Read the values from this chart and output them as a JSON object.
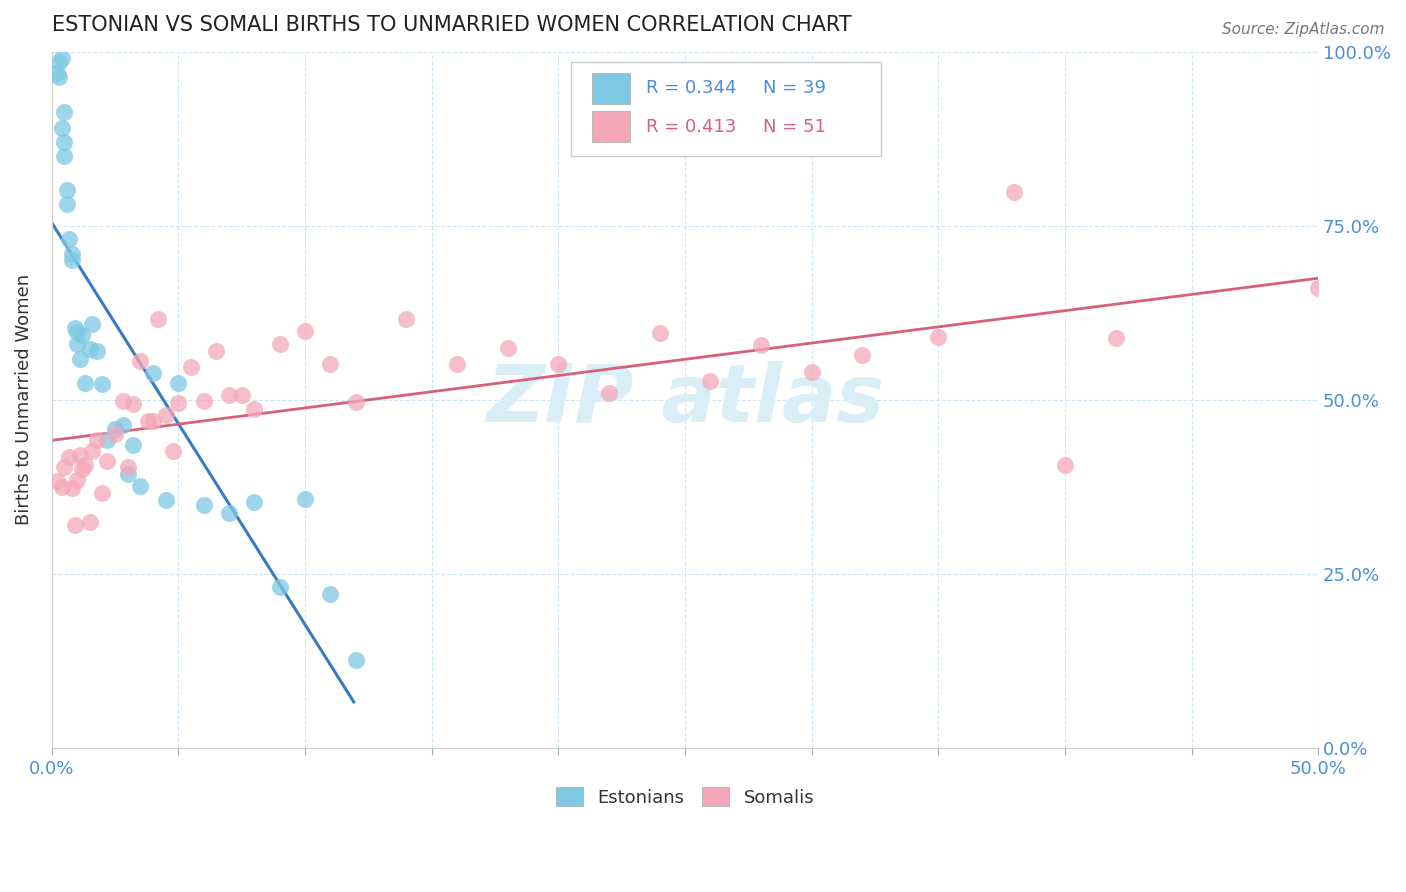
{
  "title": "ESTONIAN VS SOMALI BIRTHS TO UNMARRIED WOMEN CORRELATION CHART",
  "source": "Source: ZipAtlas.com",
  "ylabel": "Births to Unmarried Women",
  "xlim": [
    0.0,
    0.5
  ],
  "ylim": [
    0.0,
    1.0
  ],
  "legend_r1": "R = 0.344",
  "legend_n1": "N = 39",
  "legend_r2": "R = 0.413",
  "legend_n2": "N = 51",
  "legend_label1": "Estonians",
  "legend_label2": "Somalis",
  "color_estonian": "#7ec8e3",
  "color_somali": "#f4a7b9",
  "color_regression_estonian": "#3a7abf",
  "color_regression_somali": "#d9607a",
  "watermark_color": "#daeef8",
  "seed": 42
}
